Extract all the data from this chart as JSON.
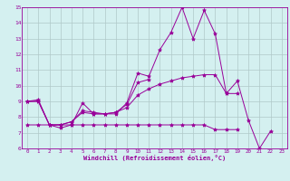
{
  "xlabel": "Windchill (Refroidissement éolien,°C)",
  "x_hours": [
    0,
    1,
    2,
    3,
    4,
    5,
    6,
    7,
    8,
    9,
    10,
    11,
    12,
    13,
    14,
    15,
    16,
    17,
    18,
    19,
    20,
    21,
    22,
    23
  ],
  "line1": [
    9.0,
    9.0,
    7.5,
    7.3,
    7.5,
    8.9,
    8.2,
    8.2,
    8.2,
    8.9,
    10.8,
    10.6,
    12.3,
    13.4,
    15.0,
    13.0,
    14.8,
    13.3,
    9.5,
    10.3,
    7.8,
    6.0,
    7.1,
    null
  ],
  "line2": [
    9.0,
    9.1,
    7.5,
    7.5,
    7.7,
    8.4,
    8.3,
    8.2,
    8.3,
    8.8,
    10.2,
    10.4,
    null,
    null,
    null,
    null,
    null,
    null,
    null,
    null,
    null,
    null,
    null,
    null
  ],
  "line3": [
    9.0,
    9.0,
    7.5,
    7.5,
    7.7,
    8.3,
    8.2,
    8.2,
    8.3,
    8.6,
    9.4,
    9.8,
    10.1,
    10.3,
    10.5,
    10.6,
    10.7,
    10.7,
    9.5,
    9.5,
    null,
    null,
    null,
    null
  ],
  "line4": [
    7.5,
    7.5,
    7.5,
    7.5,
    7.5,
    7.5,
    7.5,
    7.5,
    7.5,
    7.5,
    7.5,
    7.5,
    7.5,
    7.5,
    7.5,
    7.5,
    7.5,
    7.2,
    7.2,
    7.2,
    null,
    null,
    null,
    null
  ],
  "color": "#990099",
  "bg_color": "#d4f0f0",
  "grid_color": "#b0c8c8",
  "ylim": [
    6,
    15
  ],
  "yticks": [
    6,
    7,
    8,
    9,
    10,
    11,
    12,
    13,
    14,
    15
  ],
  "xlim": [
    -0.5,
    23.5
  ]
}
